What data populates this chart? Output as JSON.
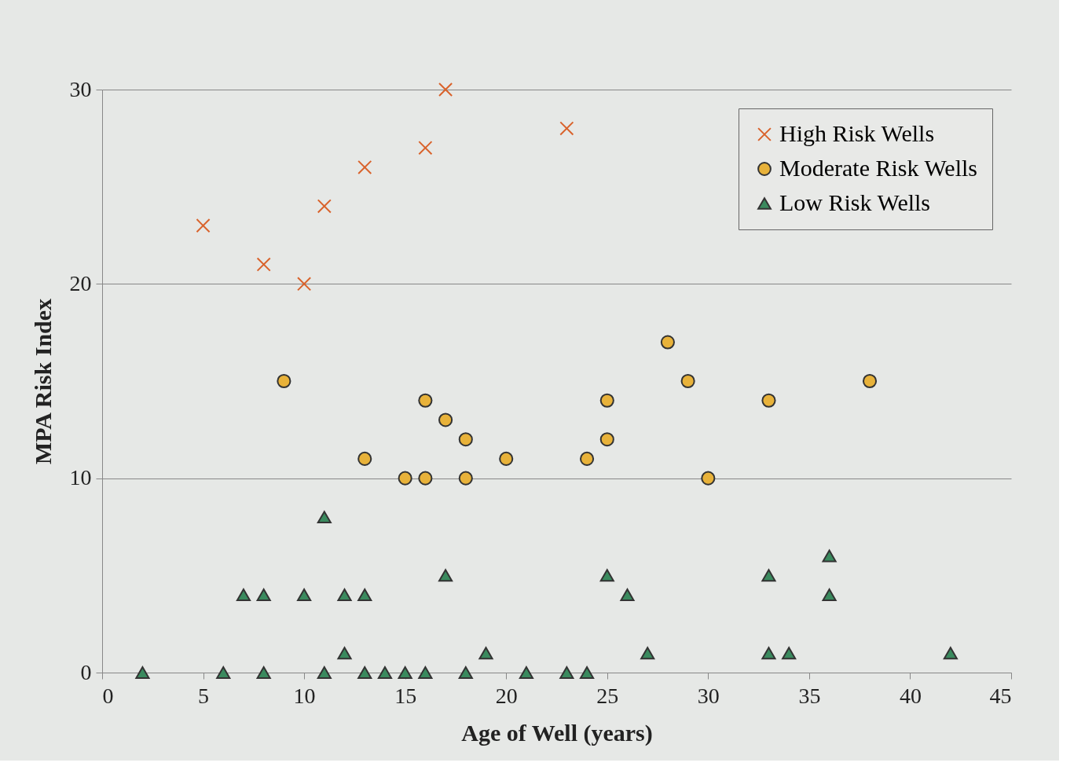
{
  "chart_data": {
    "type": "scatter",
    "xlabel": "Age of Well (years)",
    "ylabel": "MPA Risk Index",
    "xlim": [
      0,
      45
    ],
    "xticks": [
      0,
      5,
      10,
      15,
      20,
      25,
      30,
      35,
      40,
      45
    ],
    "ylim": [
      0,
      30
    ],
    "yticks": [
      0,
      10,
      20,
      30
    ],
    "grid": "y",
    "legend": "top right",
    "series": [
      {
        "name": "High Risk Wells",
        "color": "#d9622b",
        "marker": "cross",
        "x": [
          5,
          8,
          10,
          11,
          13,
          16,
          17,
          23
        ],
        "values": [
          23,
          21,
          20,
          24,
          26,
          27,
          30,
          28
        ]
      },
      {
        "name": "Moderate Risk Wells",
        "color": "#e8b23a",
        "marker": "circle",
        "x": [
          9,
          13,
          15,
          16,
          16,
          17,
          18,
          18,
          20,
          24,
          25,
          25,
          28,
          29,
          30,
          33,
          38
        ],
        "values": [
          15,
          11,
          10,
          14,
          10,
          13,
          12,
          10,
          11,
          11,
          14,
          12,
          17,
          15,
          10,
          14,
          15
        ]
      },
      {
        "name": "Low Risk Wells",
        "color": "#3a8a5e",
        "marker": "triangle",
        "x": [
          2,
          6,
          7,
          8,
          8,
          10,
          11,
          11,
          12,
          12,
          13,
          13,
          14,
          15,
          16,
          17,
          18,
          19,
          21,
          23,
          24,
          25,
          26,
          27,
          33,
          33,
          34,
          36,
          36,
          42
        ],
        "values": [
          0,
          0,
          4,
          4,
          0,
          4,
          8,
          0,
          4,
          1,
          4,
          0,
          0,
          0,
          0,
          5,
          0,
          1,
          0,
          0,
          0,
          5,
          4,
          1,
          5,
          1,
          1,
          6,
          4,
          1
        ]
      }
    ]
  }
}
